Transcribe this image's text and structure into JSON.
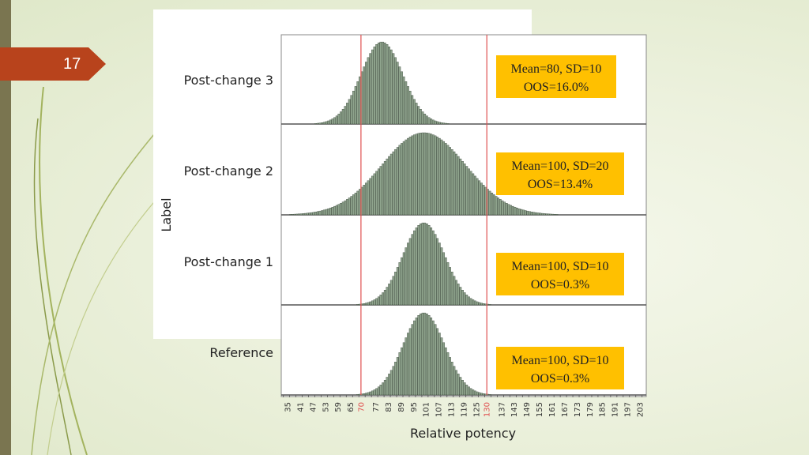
{
  "slide": {
    "number": "17"
  },
  "colors": {
    "bar_fill": "#8fa48d",
    "bar_stroke": "#3d4a3d",
    "spec_line": "#e05050",
    "annotation_bg": "#ffc000",
    "tab": "#b8431c",
    "left_bar": "#7a7550"
  },
  "chart_data": {
    "type": "histogram",
    "xlabel": "Relative potency",
    "ylabel": "Label",
    "x_ticks": [
      35,
      41,
      47,
      53,
      59,
      65,
      70,
      77,
      83,
      89,
      95,
      101,
      107,
      113,
      119,
      125,
      130,
      137,
      143,
      149,
      155,
      161,
      167,
      173,
      179,
      185,
      191,
      197,
      203
    ],
    "highlighted_ticks": [
      70,
      130
    ],
    "xlim": [
      32,
      206
    ],
    "bin_width": 1,
    "spec_limits": [
      70,
      130
    ],
    "panels": [
      {
        "label": "Post-change 3",
        "mean": 80,
        "sd": 10,
        "oos_percent": 16.0,
        "annotation": [
          "Mean=80, SD=10",
          "OOS=16.0%"
        ]
      },
      {
        "label": "Post-change 2",
        "mean": 100,
        "sd": 20,
        "oos_percent": 13.4,
        "annotation": [
          "Mean=100, SD=20",
          "OOS=13.4%"
        ]
      },
      {
        "label": "Post-change 1",
        "mean": 100,
        "sd": 10,
        "oos_percent": 0.3,
        "annotation": [
          "Mean=100, SD=10",
          "OOS=0.3%"
        ]
      },
      {
        "label": "Reference",
        "mean": 100,
        "sd": 10,
        "oos_percent": 0.3,
        "annotation": [
          "Mean=100, SD=10",
          "OOS=0.3%"
        ]
      }
    ]
  }
}
